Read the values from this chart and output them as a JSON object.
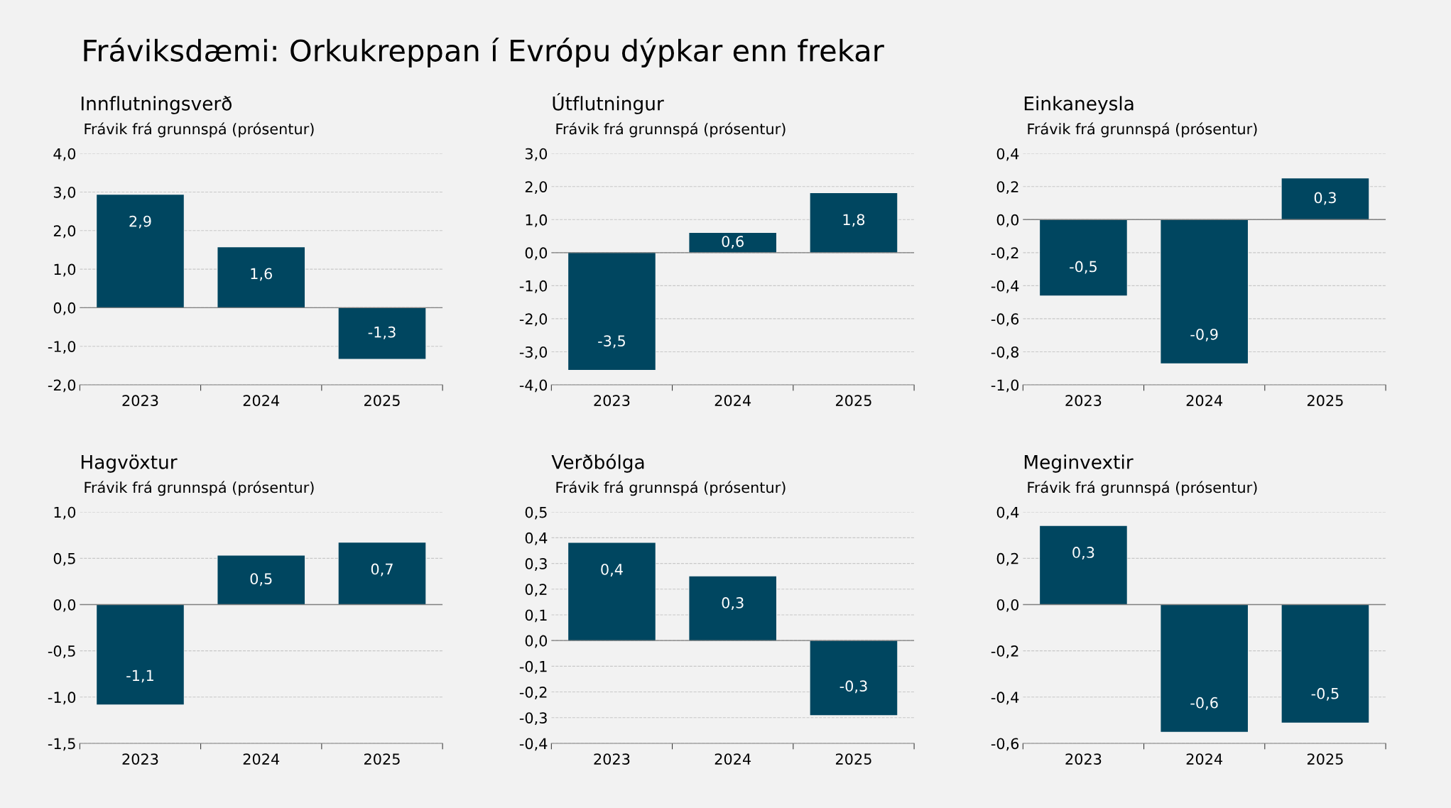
{
  "chart_data": [
    {
      "type": "bar",
      "title": "Innflutningsverð",
      "subtitle": "Frávik frá grunnspá (prósentur)",
      "annotations": [
        "Fráviksdæmi: Orkukreppan í Evrópu dýpkar enn frekar"
      ],
      "categories": [
        "2023",
        "2024",
        "2025"
      ],
      "values": [
        2.93,
        1.57,
        -1.33
      ],
      "value_labels": [
        "2,9",
        "1,6",
        "-1,3"
      ],
      "color": "#004660",
      "ylim": [
        -2,
        4
      ],
      "yticks": [
        {
          "value": -2,
          "label": "-2,0"
        },
        {
          "value": -1,
          "label": "-1,0"
        },
        {
          "value": 0,
          "label": "0,0"
        },
        {
          "value": 1,
          "label": "1,0"
        },
        {
          "value": 2,
          "label": "2,0"
        },
        {
          "value": 3,
          "label": "3,0"
        },
        {
          "value": 4,
          "label": "4,0"
        }
      ],
      "grid": "y"
    },
    {
      "type": "bar",
      "title": "Útflutningur",
      "subtitle": "Frávik frá grunnspá (prósentur)",
      "categories": [
        "2023",
        "2024",
        "2025"
      ],
      "values": [
        -3.55,
        0.6,
        1.8
      ],
      "value_labels": [
        "-3,5",
        "0,6",
        "1,8"
      ],
      "color": "#004660",
      "ylim": [
        -4,
        3
      ],
      "yticks": [
        {
          "value": -4,
          "label": "-4,0"
        },
        {
          "value": -3,
          "label": "-3,0"
        },
        {
          "value": -2,
          "label": "-2,0"
        },
        {
          "value": -1,
          "label": "-1,0"
        },
        {
          "value": 0,
          "label": "0,0"
        },
        {
          "value": 1,
          "label": "1,0"
        },
        {
          "value": 2,
          "label": "2,0"
        },
        {
          "value": 3,
          "label": "3,0"
        }
      ],
      "grid": "y"
    },
    {
      "type": "bar",
      "title": "Einkaneysla",
      "subtitle": "Frávik frá grunnspá (prósentur)",
      "categories": [
        "2023",
        "2024",
        "2025"
      ],
      "values": [
        -0.46,
        -0.87,
        0.25
      ],
      "value_labels": [
        "-0,5",
        "-0,9",
        "0,3"
      ],
      "color": "#004660",
      "ylim": [
        -1,
        0.4
      ],
      "yticks": [
        {
          "value": -1,
          "label": "-1,0"
        },
        {
          "value": -0.8,
          "label": "-0,8"
        },
        {
          "value": -0.6,
          "label": "-0,6"
        },
        {
          "value": -0.4,
          "label": "-0,4"
        },
        {
          "value": -0.2,
          "label": "-0,2"
        },
        {
          "value": 0,
          "label": "0,0"
        },
        {
          "value": 0.2,
          "label": "0,2"
        },
        {
          "value": 0.4,
          "label": "0,4"
        }
      ],
      "grid": "y"
    },
    {
      "type": "bar",
      "title": "Hagvöxtur",
      "subtitle": "Frávik frá grunnspá (prósentur)",
      "categories": [
        "2023",
        "2024",
        "2025"
      ],
      "values": [
        -1.08,
        0.53,
        0.67
      ],
      "value_labels": [
        "-1,1",
        "0,5",
        "0,7"
      ],
      "color": "#004660",
      "ylim": [
        -1.5,
        1
      ],
      "yticks": [
        {
          "value": -1.5,
          "label": "-1,5"
        },
        {
          "value": -1,
          "label": "-1,0"
        },
        {
          "value": -0.5,
          "label": "-0,5"
        },
        {
          "value": 0,
          "label": "0,0"
        },
        {
          "value": 0.5,
          "label": "0,5"
        },
        {
          "value": 1,
          "label": "1,0"
        }
      ],
      "grid": "y"
    },
    {
      "type": "bar",
      "title": "Verðbólga",
      "subtitle": "Frávik frá grunnspá (prósentur)",
      "categories": [
        "2023",
        "2024",
        "2025"
      ],
      "values": [
        0.38,
        0.25,
        -0.29
      ],
      "value_labels": [
        "0,4",
        "0,3",
        "-0,3"
      ],
      "color": "#004660",
      "ylim": [
        -0.4,
        0.5
      ],
      "yticks": [
        {
          "value": -0.4,
          "label": "-0,4"
        },
        {
          "value": -0.3,
          "label": "-0,3"
        },
        {
          "value": -0.2,
          "label": "-0,2"
        },
        {
          "value": -0.1,
          "label": "-0,1"
        },
        {
          "value": 0,
          "label": "0,0"
        },
        {
          "value": 0.1,
          "label": "0,1"
        },
        {
          "value": 0.2,
          "label": "0,2"
        },
        {
          "value": 0.3,
          "label": "0,3"
        },
        {
          "value": 0.4,
          "label": "0,4"
        },
        {
          "value": 0.5,
          "label": "0,5"
        }
      ],
      "grid": "y"
    },
    {
      "type": "bar",
      "title": "Meginvextir",
      "subtitle": "Frávik frá grunnspá (prósentur)",
      "categories": [
        "2023",
        "2024",
        "2025"
      ],
      "values": [
        0.34,
        -0.55,
        -0.51
      ],
      "value_labels": [
        "0,3",
        "-0,6",
        "-0,5"
      ],
      "color": "#004660",
      "ylim": [
        -0.6,
        0.4
      ],
      "yticks": [
        {
          "value": -0.6,
          "label": "-0,6"
        },
        {
          "value": -0.4,
          "label": "-0,4"
        },
        {
          "value": -0.2,
          "label": "-0,2"
        },
        {
          "value": 0,
          "label": "0,0"
        },
        {
          "value": 0.2,
          "label": "0,2"
        },
        {
          "value": 0.4,
          "label": "0,4"
        }
      ],
      "grid": "y"
    }
  ]
}
